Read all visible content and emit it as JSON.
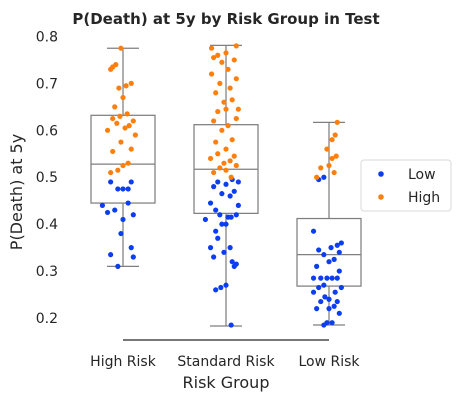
{
  "chart_data": {
    "type": "box+strip",
    "title": "P(Death) at 5y by Risk Group in Test",
    "xlabel": "Risk Group",
    "ylabel": "P(Death) at 5y",
    "categories": [
      "High Risk",
      "Standard Risk",
      "Low Risk"
    ],
    "ylim": [
      0.15,
      0.8
    ],
    "yticks": [
      0.2,
      0.3,
      0.4,
      0.5,
      0.6,
      0.7,
      0.8
    ],
    "ytick_labels": [
      "0.2",
      "0.3",
      "0.4",
      "0.5",
      "0.6",
      "0.7",
      "0.8"
    ],
    "grid": false,
    "legend": {
      "placement": "right",
      "entries": [
        {
          "name": "Low",
          "color": "#0b3ef0"
        },
        {
          "name": "High",
          "color": "#ff7f0e"
        }
      ]
    },
    "boxes": [
      {
        "category": "High Risk",
        "whisker_low": 0.31,
        "q1": 0.445,
        "median": 0.528,
        "q3": 0.632,
        "whisker_high": 0.775
      },
      {
        "category": "Standard Risk",
        "whisker_low": 0.183,
        "q1": 0.423,
        "median": 0.517,
        "q3": 0.612,
        "whisker_high": 0.781
      },
      {
        "category": "Low Risk",
        "whisker_low": 0.185,
        "q1": 0.268,
        "median": 0.335,
        "q3": 0.412,
        "whisker_high": 0.617
      }
    ],
    "series": [
      {
        "name": "Low",
        "color": "#0b3ef0",
        "points": [
          {
            "cat": 0,
            "jitter": -0.05,
            "y": 0.31
          },
          {
            "cat": 0,
            "jitter": 0.1,
            "y": 0.33
          },
          {
            "cat": 0,
            "jitter": -0.12,
            "y": 0.335
          },
          {
            "cat": 0,
            "jitter": 0.08,
            "y": 0.35
          },
          {
            "cat": 0,
            "jitter": -0.02,
            "y": 0.38
          },
          {
            "cat": 0,
            "jitter": 0.0,
            "y": 0.41
          },
          {
            "cat": 0,
            "jitter": 0.1,
            "y": 0.42
          },
          {
            "cat": 0,
            "jitter": -0.15,
            "y": 0.425
          },
          {
            "cat": 0,
            "jitter": -0.08,
            "y": 0.43
          },
          {
            "cat": 0,
            "jitter": -0.2,
            "y": 0.44
          },
          {
            "cat": 0,
            "jitter": 0.05,
            "y": 0.445
          },
          {
            "cat": 0,
            "jitter": -0.05,
            "y": 0.475
          },
          {
            "cat": 0,
            "jitter": 0.0,
            "y": 0.475
          },
          {
            "cat": 0,
            "jitter": 0.05,
            "y": 0.475
          },
          {
            "cat": 0,
            "jitter": -0.12,
            "y": 0.49
          },
          {
            "cat": 0,
            "jitter": 0.08,
            "y": 0.49
          },
          {
            "cat": 1,
            "jitter": 0.05,
            "y": 0.185
          },
          {
            "cat": 1,
            "jitter": -0.1,
            "y": 0.26
          },
          {
            "cat": 1,
            "jitter": -0.05,
            "y": 0.265
          },
          {
            "cat": 1,
            "jitter": 0.0,
            "y": 0.27
          },
          {
            "cat": 1,
            "jitter": 0.08,
            "y": 0.31
          },
          {
            "cat": 1,
            "jitter": 0.1,
            "y": 0.315
          },
          {
            "cat": 1,
            "jitter": 0.06,
            "y": 0.32
          },
          {
            "cat": 1,
            "jitter": -0.12,
            "y": 0.33
          },
          {
            "cat": 1,
            "jitter": -0.02,
            "y": 0.34
          },
          {
            "cat": 1,
            "jitter": -0.15,
            "y": 0.35
          },
          {
            "cat": 1,
            "jitter": 0.04,
            "y": 0.35
          },
          {
            "cat": 1,
            "jitter": -0.08,
            "y": 0.37
          },
          {
            "cat": 1,
            "jitter": -0.1,
            "y": 0.385
          },
          {
            "cat": 1,
            "jitter": -0.04,
            "y": 0.4
          },
          {
            "cat": 1,
            "jitter": 0.0,
            "y": 0.4
          },
          {
            "cat": 1,
            "jitter": -0.2,
            "y": 0.41
          },
          {
            "cat": 1,
            "jitter": 0.02,
            "y": 0.415
          },
          {
            "cat": 1,
            "jitter": 0.05,
            "y": 0.415
          },
          {
            "cat": 1,
            "jitter": 0.1,
            "y": 0.42
          },
          {
            "cat": 1,
            "jitter": -0.06,
            "y": 0.42
          },
          {
            "cat": 1,
            "jitter": -0.1,
            "y": 0.43
          },
          {
            "cat": 1,
            "jitter": 0.12,
            "y": 0.44
          },
          {
            "cat": 1,
            "jitter": -0.15,
            "y": 0.445
          },
          {
            "cat": 1,
            "jitter": 0.04,
            "y": 0.46
          },
          {
            "cat": 1,
            "jitter": -0.04,
            "y": 0.465
          },
          {
            "cat": 1,
            "jitter": 0.08,
            "y": 0.47
          },
          {
            "cat": 1,
            "jitter": -0.12,
            "y": 0.48
          },
          {
            "cat": 1,
            "jitter": 0.0,
            "y": 0.485
          },
          {
            "cat": 1,
            "jitter": -0.08,
            "y": 0.49
          },
          {
            "cat": 1,
            "jitter": 0.12,
            "y": 0.49
          },
          {
            "cat": 1,
            "jitter": 0.06,
            "y": 0.495
          },
          {
            "cat": 2,
            "jitter": -0.05,
            "y": 0.185
          },
          {
            "cat": 2,
            "jitter": -0.02,
            "y": 0.19
          },
          {
            "cat": 2,
            "jitter": 0.03,
            "y": 0.19
          },
          {
            "cat": 2,
            "jitter": 0.1,
            "y": 0.21
          },
          {
            "cat": 2,
            "jitter": 0.0,
            "y": 0.22
          },
          {
            "cat": 2,
            "jitter": -0.12,
            "y": 0.22
          },
          {
            "cat": 2,
            "jitter": 0.05,
            "y": 0.225
          },
          {
            "cat": 2,
            "jitter": -0.08,
            "y": 0.235
          },
          {
            "cat": 2,
            "jitter": 0.08,
            "y": 0.235
          },
          {
            "cat": 2,
            "jitter": 0.0,
            "y": 0.24
          },
          {
            "cat": 2,
            "jitter": -0.04,
            "y": 0.245
          },
          {
            "cat": 2,
            "jitter": -0.15,
            "y": 0.255
          },
          {
            "cat": 2,
            "jitter": 0.06,
            "y": 0.255
          },
          {
            "cat": 2,
            "jitter": -0.1,
            "y": 0.265
          },
          {
            "cat": 2,
            "jitter": 0.12,
            "y": 0.265
          },
          {
            "cat": 2,
            "jitter": -0.05,
            "y": 0.27
          },
          {
            "cat": 2,
            "jitter": -0.15,
            "y": 0.285
          },
          {
            "cat": 2,
            "jitter": -0.08,
            "y": 0.285
          },
          {
            "cat": 2,
            "jitter": -0.02,
            "y": 0.285
          },
          {
            "cat": 2,
            "jitter": 0.03,
            "y": 0.285
          },
          {
            "cat": 2,
            "jitter": 0.08,
            "y": 0.285
          },
          {
            "cat": 2,
            "jitter": 0.1,
            "y": 0.3
          },
          {
            "cat": 2,
            "jitter": -0.12,
            "y": 0.31
          },
          {
            "cat": 2,
            "jitter": 0.0,
            "y": 0.32
          },
          {
            "cat": 2,
            "jitter": 0.05,
            "y": 0.325
          },
          {
            "cat": 2,
            "jitter": -0.05,
            "y": 0.335
          },
          {
            "cat": 2,
            "jitter": 0.1,
            "y": 0.34
          },
          {
            "cat": 2,
            "jitter": -0.1,
            "y": 0.345
          },
          {
            "cat": 2,
            "jitter": 0.02,
            "y": 0.35
          },
          {
            "cat": 2,
            "jitter": 0.08,
            "y": 0.355
          },
          {
            "cat": 2,
            "jitter": 0.12,
            "y": 0.36
          },
          {
            "cat": 2,
            "jitter": -0.15,
            "y": 0.385
          },
          {
            "cat": 2,
            "jitter": -0.1,
            "y": 0.495
          },
          {
            "cat": 2,
            "jitter": -0.05,
            "y": 0.5
          }
        ]
      },
      {
        "name": "High",
        "color": "#ff7f0e",
        "points": [
          {
            "cat": 0,
            "jitter": -0.12,
            "y": 0.51
          },
          {
            "cat": 0,
            "jitter": -0.05,
            "y": 0.515
          },
          {
            "cat": 0,
            "jitter": 0.0,
            "y": 0.525
          },
          {
            "cat": 0,
            "jitter": 0.05,
            "y": 0.53
          },
          {
            "cat": 0,
            "jitter": -0.1,
            "y": 0.555
          },
          {
            "cat": 0,
            "jitter": 0.08,
            "y": 0.56
          },
          {
            "cat": 0,
            "jitter": -0.02,
            "y": 0.575
          },
          {
            "cat": 0,
            "jitter": 0.12,
            "y": 0.59
          },
          {
            "cat": 0,
            "jitter": -0.15,
            "y": 0.6
          },
          {
            "cat": 0,
            "jitter": 0.02,
            "y": 0.605
          },
          {
            "cat": 0,
            "jitter": 0.06,
            "y": 0.61
          },
          {
            "cat": 0,
            "jitter": -0.06,
            "y": 0.615
          },
          {
            "cat": 0,
            "jitter": 0.1,
            "y": 0.62
          },
          {
            "cat": 0,
            "jitter": -0.1,
            "y": 0.625
          },
          {
            "cat": 0,
            "jitter": -0.03,
            "y": 0.63
          },
          {
            "cat": 0,
            "jitter": 0.04,
            "y": 0.635
          },
          {
            "cat": 0,
            "jitter": -0.08,
            "y": 0.65
          },
          {
            "cat": 0,
            "jitter": 0.0,
            "y": 0.67
          },
          {
            "cat": 0,
            "jitter": -0.04,
            "y": 0.69
          },
          {
            "cat": 0,
            "jitter": 0.03,
            "y": 0.695
          },
          {
            "cat": 0,
            "jitter": 0.08,
            "y": 0.7
          },
          {
            "cat": 0,
            "jitter": -0.12,
            "y": 0.73
          },
          {
            "cat": 0,
            "jitter": -0.1,
            "y": 0.735
          },
          {
            "cat": 0,
            "jitter": -0.07,
            "y": 0.74
          },
          {
            "cat": 0,
            "jitter": -0.02,
            "y": 0.775
          },
          {
            "cat": 1,
            "jitter": 0.05,
            "y": 0.5
          },
          {
            "cat": 1,
            "jitter": -0.12,
            "y": 0.51
          },
          {
            "cat": 1,
            "jitter": 0.0,
            "y": 0.515
          },
          {
            "cat": 1,
            "jitter": -0.06,
            "y": 0.52
          },
          {
            "cat": 1,
            "jitter": 0.1,
            "y": 0.525
          },
          {
            "cat": 1,
            "jitter": -0.02,
            "y": 0.53
          },
          {
            "cat": 1,
            "jitter": 0.04,
            "y": 0.535
          },
          {
            "cat": 1,
            "jitter": -0.15,
            "y": 0.54
          },
          {
            "cat": 1,
            "jitter": 0.08,
            "y": 0.545
          },
          {
            "cat": 1,
            "jitter": -0.08,
            "y": 0.55
          },
          {
            "cat": 1,
            "jitter": 0.0,
            "y": 0.56
          },
          {
            "cat": 1,
            "jitter": -0.1,
            "y": 0.575
          },
          {
            "cat": 1,
            "jitter": 0.06,
            "y": 0.58
          },
          {
            "cat": 1,
            "jitter": -0.04,
            "y": 0.6
          },
          {
            "cat": 1,
            "jitter": 0.02,
            "y": 0.61
          },
          {
            "cat": 1,
            "jitter": -0.12,
            "y": 0.62
          },
          {
            "cat": 1,
            "jitter": 0.1,
            "y": 0.625
          },
          {
            "cat": 1,
            "jitter": -0.08,
            "y": 0.64
          },
          {
            "cat": 1,
            "jitter": 0.0,
            "y": 0.645
          },
          {
            "cat": 1,
            "jitter": 0.12,
            "y": 0.645
          },
          {
            "cat": 1,
            "jitter": -0.02,
            "y": 0.66
          },
          {
            "cat": 1,
            "jitter": 0.06,
            "y": 0.665
          },
          {
            "cat": 1,
            "jitter": -0.1,
            "y": 0.68
          },
          {
            "cat": 1,
            "jitter": 0.04,
            "y": 0.69
          },
          {
            "cat": 1,
            "jitter": -0.06,
            "y": 0.7
          },
          {
            "cat": 1,
            "jitter": 0.1,
            "y": 0.71
          },
          {
            "cat": 1,
            "jitter": -0.14,
            "y": 0.72
          },
          {
            "cat": 1,
            "jitter": 0.02,
            "y": 0.73
          },
          {
            "cat": 1,
            "jitter": -0.04,
            "y": 0.745
          },
          {
            "cat": 1,
            "jitter": 0.08,
            "y": 0.75
          },
          {
            "cat": 1,
            "jitter": -0.12,
            "y": 0.755
          },
          {
            "cat": 1,
            "jitter": -0.08,
            "y": 0.76
          },
          {
            "cat": 1,
            "jitter": 0.0,
            "y": 0.765
          },
          {
            "cat": 1,
            "jitter": -0.14,
            "y": 0.775
          },
          {
            "cat": 1,
            "jitter": 0.1,
            "y": 0.78
          },
          {
            "cat": 2,
            "jitter": -0.12,
            "y": 0.5
          },
          {
            "cat": 2,
            "jitter": 0.05,
            "y": 0.51
          },
          {
            "cat": 2,
            "jitter": -0.08,
            "y": 0.52
          },
          {
            "cat": 2,
            "jitter": 0.0,
            "y": 0.525
          },
          {
            "cat": 2,
            "jitter": 0.03,
            "y": 0.54
          },
          {
            "cat": 2,
            "jitter": 0.07,
            "y": 0.545
          },
          {
            "cat": 2,
            "jitter": -0.02,
            "y": 0.56
          },
          {
            "cat": 2,
            "jitter": 0.03,
            "y": 0.58
          },
          {
            "cat": 2,
            "jitter": 0.06,
            "y": 0.59
          },
          {
            "cat": 2,
            "jitter": 0.08,
            "y": 0.617
          }
        ]
      }
    ]
  }
}
